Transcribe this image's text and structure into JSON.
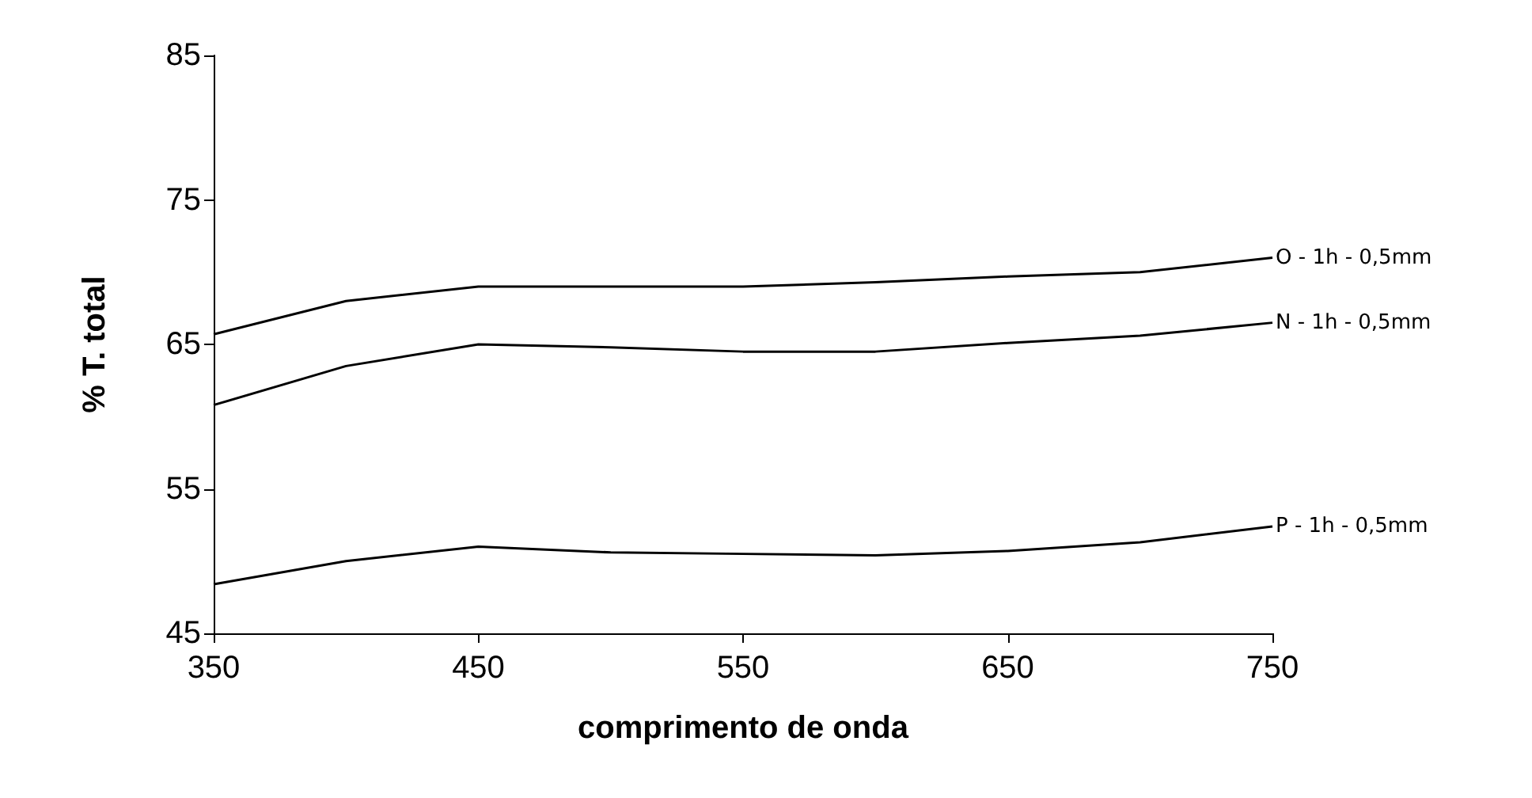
{
  "chart_data": {
    "type": "line",
    "xlabel": "comprimento de onda",
    "ylabel": "% T. total",
    "x": [
      350,
      400,
      450,
      500,
      550,
      600,
      650,
      700,
      750
    ],
    "series": [
      {
        "name": "O - 1h - 0,5mm",
        "color": "#000000",
        "values": [
          65.7,
          68,
          69,
          69,
          69,
          69.3,
          69.7,
          70,
          71
        ]
      },
      {
        "name": "N - 1h - 0,5mm",
        "color": "#000000",
        "values": [
          60.8,
          63.5,
          65,
          64.8,
          64.5,
          64.5,
          65.1,
          65.6,
          66.5
        ]
      },
      {
        "name": "P - 1h - 0,5mm",
        "color": "#000000",
        "values": [
          48.4,
          50,
          51,
          50.6,
          50.5,
          50.4,
          50.7,
          51.3,
          52.4
        ]
      }
    ],
    "xlim": [
      350,
      750
    ],
    "xticks": [
      350,
      450,
      550,
      650,
      750
    ],
    "ylim": [
      45,
      85
    ],
    "yticks": [
      45,
      55,
      65,
      75,
      85
    ],
    "grid": false,
    "legend": false,
    "marker": "none",
    "line_style": "solid"
  }
}
